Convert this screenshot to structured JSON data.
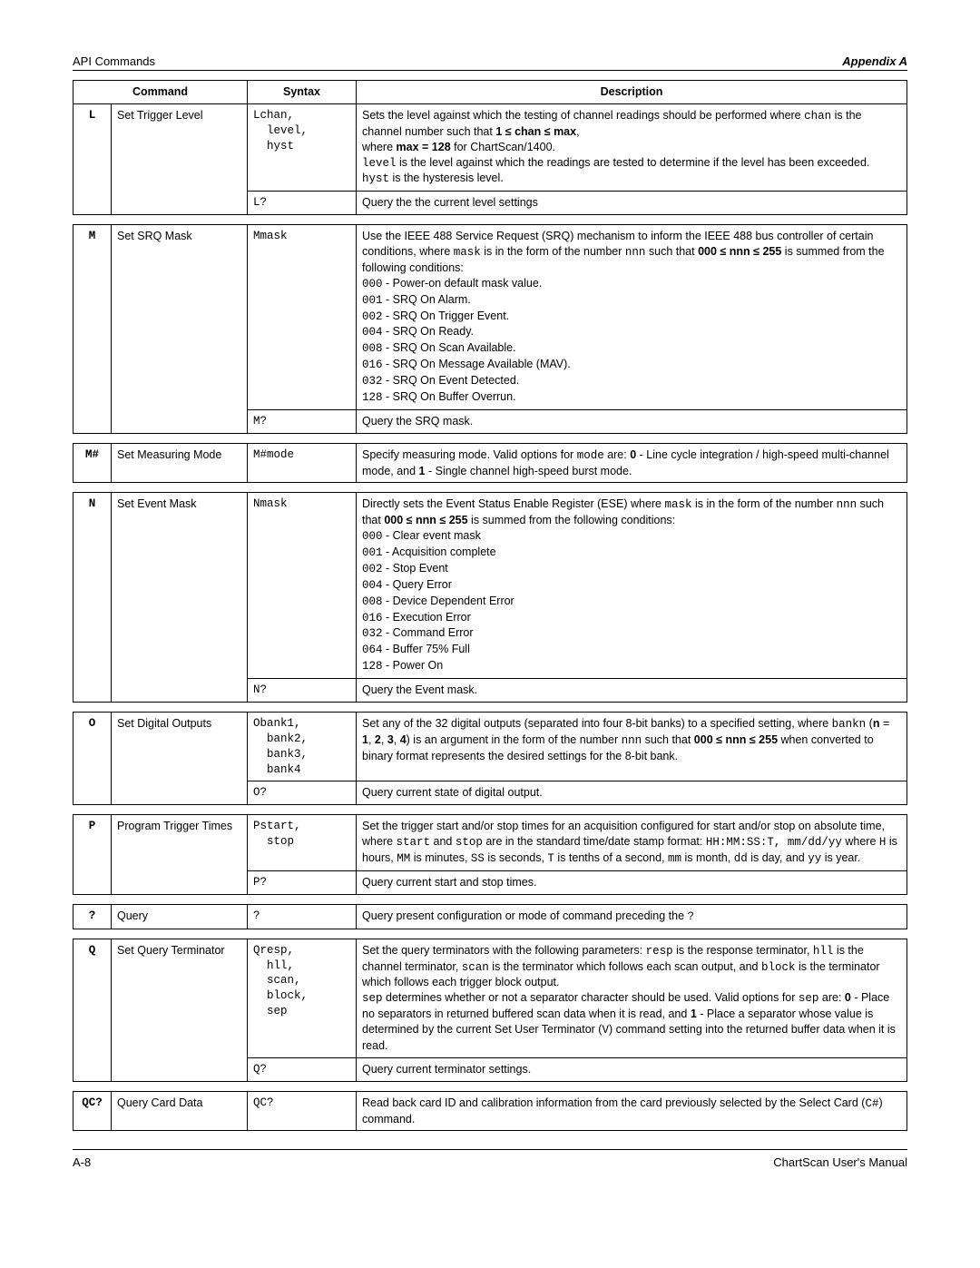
{
  "header": {
    "left": "API Commands",
    "right": "Appendix A"
  },
  "tableHeaders": {
    "command": "Command",
    "syntax": "Syntax",
    "description": "Description"
  },
  "footer": {
    "left": "A-8",
    "right": "ChartScan User's Manual"
  },
  "commands": [
    {
      "code": "L",
      "name": "Set Trigger Level",
      "rows": [
        {
          "syntax": "Lchan,\n  level,\n  hyst",
          "desc": "Sets the level against which the testing of channel readings should be performed where <mono>chan</mono> is the channel number such that <b>1 ≤ chan ≤ max</b>,<br>where <b>max = 128</b> for ChartScan/1400.<br><mono>level</mono> is the level against which the readings are tested to determine if the level has been exceeded.<br><mono>hyst</mono> is the hysteresis level."
        },
        {
          "syntax": "L?",
          "desc": "Query the the current level settings"
        }
      ]
    },
    {
      "code": "M",
      "name": "Set SRQ Mask",
      "rows": [
        {
          "syntax": "Mmask",
          "desc": "Use the IEEE 488 Service Request (SRQ) mechanism to inform the IEEE 488 bus controller of certain conditions, where <mono>mask</mono> is in the form of the number <mono>nnn</mono> such that <b>000 ≤ nnn ≤ 255</b> is summed from the following conditions:<br><mono>000</mono> - Power-on default mask value.<br><mono>001</mono> - SRQ On Alarm.<br><mono>002</mono> - SRQ On Trigger Event.<br><mono>004</mono> - SRQ On Ready.<br><mono>008</mono> - SRQ On Scan Available.<br><mono>016</mono> - SRQ On Message Available (MAV).<br><mono>032</mono> - SRQ On Event Detected.<br><mono>128</mono> - SRQ On Buffer Overrun."
        },
        {
          "syntax": "M?",
          "desc": "Query the SRQ mask."
        }
      ]
    },
    {
      "code": "M#",
      "name": "Set Measuring Mode",
      "rows": [
        {
          "syntax": "M#mode",
          "desc": "Specify measuring mode.  Valid options for <mono>mode</mono> are: <b>0</b> - Line cycle integration / high-speed multi-channel mode, and <b>1</b> - Single channel high-speed burst mode."
        }
      ]
    },
    {
      "code": "N",
      "name": "Set Event Mask",
      "rows": [
        {
          "syntax": "Nmask",
          "desc": "Directly sets the Event Status Enable Register (ESE) where <mono>mask</mono> is in the form of the number <mono>nnn</mono> such that <b>000 ≤ nnn ≤ 255</b> is summed from the following conditions:<br><mono>000</mono> - Clear event mask<br><mono>001</mono> - Acquisition complete<br><mono>002</mono> - Stop Event<br><mono>004</mono> - Query Error<br><mono>008</mono> - Device Dependent Error<br><mono>016</mono> - Execution Error<br><mono>032</mono> - Command Error<br><mono>064</mono> - Buffer 75% Full<br><mono>128</mono> - Power On"
        },
        {
          "syntax": "N?",
          "desc": "Query the Event mask."
        }
      ]
    },
    {
      "code": "O",
      "name": "Set Digital Outputs",
      "rows": [
        {
          "syntax": "Obank1,\n  bank2,\n  bank3,\n  bank4",
          "desc": "Set any of the 32 digital outputs (separated into four 8-bit banks) to a specified setting, where <mono>bankn</mono> (<b>n</b> = <b>1</b>, <b>2</b>, <b>3</b>, <b>4</b>) is an argument in the form of the number <mono>nnn</mono> such that <b>000 ≤ nnn ≤ 255</b> when converted to binary format represents the desired settings for the 8-bit bank."
        },
        {
          "syntax": "O?",
          "desc": "Query current state of digital output."
        }
      ]
    },
    {
      "code": "P",
      "name": "Program Trigger Times",
      "rows": [
        {
          "syntax": "Pstart,\n  stop",
          "desc": "Set the trigger start and/or stop times for an acquisition configured for start and/or stop on absolute time, where <mono>start</mono> and <mono>stop</mono> are in the standard time/date stamp format: <mono>HH:MM:SS:T, mm/dd/yy</mono> where <mono>H</mono> is hours, <mono>MM</mono> is minutes, <mono>SS</mono> is seconds, <mono>T</mono> is tenths of a second, <mono>mm</mono> is month, <mono>dd</mono> is day, and <mono>yy</mono> is year."
        },
        {
          "syntax": "P?",
          "desc": "Query current start and stop times."
        }
      ]
    },
    {
      "code": "?",
      "name": "Query",
      "rows": [
        {
          "syntax": "?",
          "desc": "Query present configuration or mode of command preceding the <mono>?</mono>"
        }
      ]
    },
    {
      "code": "Q",
      "name": "Set Query Terminator",
      "rows": [
        {
          "syntax": "Qresp,\n  hll,\n  scan,\n  block,\n  sep",
          "desc": "Set the query terminators with the following parameters: <mono>resp</mono> is the response terminator, <mono>hll</mono> is the channel terminator, <mono>scan</mono> is the terminator which follows each scan output, and <mono>block</mono> is the terminator which follows each trigger block output.<br><mono>sep</mono> determines whether or not a separator character should be used.  Valid options for <mono>sep</mono> are: <b>0</b> - Place no separators in returned buffered scan data when it is read, and <b>1</b> - Place a separator whose value is determined by the current Set User Terminator (<mono>V</mono>) command setting into the returned buffer data when it is read."
        },
        {
          "syntax": "Q?",
          "desc": "Query current terminator settings."
        }
      ]
    },
    {
      "code": "QC?",
      "name": "Query Card Data",
      "rows": [
        {
          "syntax": "QC?",
          "desc": "Read back card ID and calibration information from the card previously selected by the Select Card (<mono>C#</mono>) command."
        }
      ]
    }
  ]
}
